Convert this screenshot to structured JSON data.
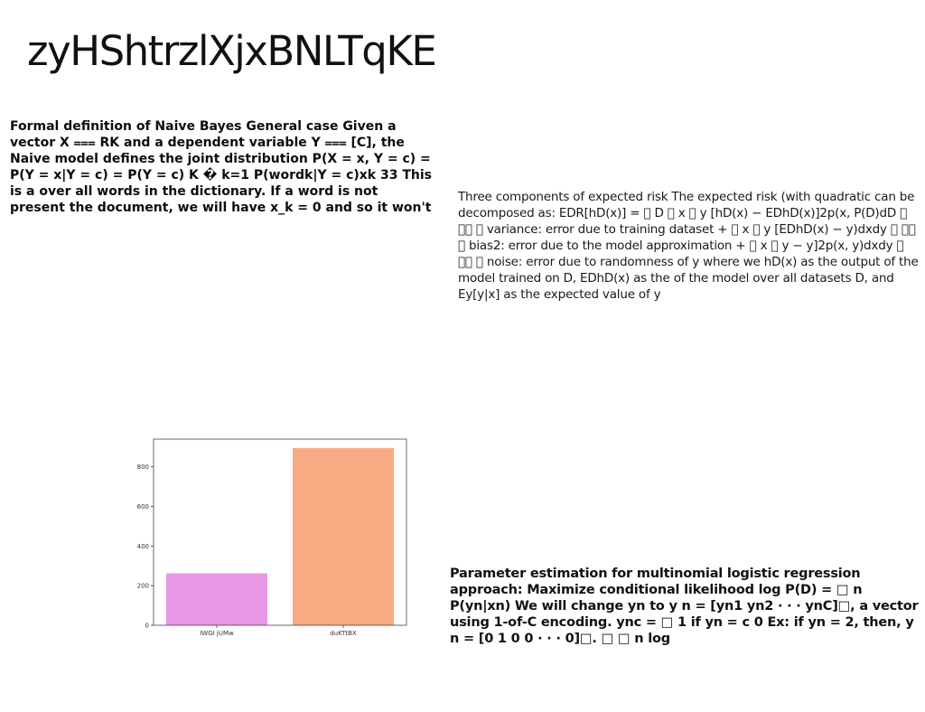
{
  "page": {
    "title": "zyHShtrzlXjxBNLTqKE"
  },
  "blocks": {
    "naive_bayes": "Formal definition of Naive Bayes General case Given a vector X ⩶ RK and a dependent variable Y ⩶ [C], the Naive model defines the joint distribution P(X = x, Y = c) = P(Y = x|Y = c) = P(Y = c) K � k=1 P(wordk|Y = c)xk 33 This is a over all words in the dictionary. If a word is not present the document, we will have x_k = 0 and so it won't",
    "expected_risk": "Three components of expected risk The expected risk (with quadratic can be decomposed as: EDR[hD(x)] = 󰅇 D 󰅇 x 󰅇 y [hD(x) − EDhD(x)]2p(x, P(D)dD 󰅇 󰅇󰅇 󰅇 variance: error due to training dataset + 󰅇 x 󰅇 y [EDhD(x) − y)dxdy 󰅇 󰅇󰅇 󰅇 bias2: error due to the model approximation + 󰅇 x 󰅇 y − y]2p(x, y)dxdy 󰅇 󰅇󰅇 󰅇 noise: error due to randomness of y where we hD(x) as the output of the model trained on D, EDhD(x) as the of the model over all datasets D, and Ey[y|x] as the expected value of y",
    "logistic_regression": "Parameter estimation for multinomial logistic regression approach: Maximize conditional likelihood log P(D) = □ n P(yn|xn) We will change yn to y n = [yn1 yn2 · · · ynC]□, a vector using 1-of-C encoding. ync = □ 1 if yn = c 0 Ex: if yn = 2, then, y n = [0 1 0 0 · · · 0]□. □ □ n log"
  },
  "chart_data": {
    "type": "bar",
    "categories": [
      "IWGI jUMw",
      "duKTtBX"
    ],
    "values": [
      262,
      895
    ],
    "colors": [
      "#e896e5",
      "#f8aa82"
    ],
    "ylim": [
      0,
      940
    ],
    "yticks": [
      0,
      200,
      400,
      600,
      800
    ],
    "xlabel": "",
    "ylabel": "",
    "title": "",
    "grid": false
  }
}
